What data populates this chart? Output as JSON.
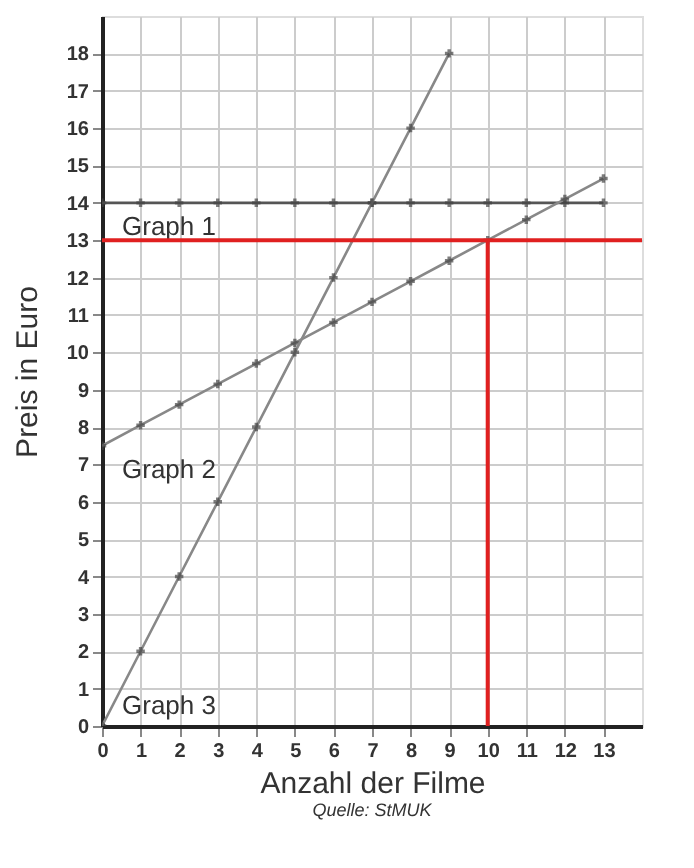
{
  "chart_data": {
    "type": "line",
    "xlabel": "Anzahl der Filme",
    "ylabel": "Preis in Euro",
    "annotations": [
      "Quelle: StMUK"
    ],
    "series": [
      {
        "name": "Graph 1",
        "color": "#555555",
        "x": [
          0,
          1,
          2,
          3,
          4,
          5,
          6,
          7,
          8,
          9,
          10,
          11,
          12,
          13
        ],
        "values": [
          14,
          14,
          14,
          14,
          14,
          14,
          14,
          14,
          14,
          14,
          14,
          14,
          14,
          14
        ]
      },
      {
        "name": "Graph 2",
        "color": "#888888",
        "x": [
          0,
          1,
          2,
          3,
          4,
          5,
          6,
          7,
          8,
          9,
          10,
          11,
          12,
          13
        ],
        "values": [
          7.5,
          8.05,
          8.6,
          9.15,
          9.7,
          10.25,
          10.8,
          11.35,
          11.9,
          12.45,
          13,
          13.55,
          14.1,
          14.65
        ]
      },
      {
        "name": "Graph 3",
        "color": "#888888",
        "x": [
          0,
          1,
          2,
          3,
          4,
          5,
          6,
          7,
          8,
          9
        ],
        "values": [
          0,
          2,
          4,
          6,
          8,
          10,
          12,
          14,
          16,
          18
        ]
      }
    ],
    "ref_lines": [
      {
        "axis": "y",
        "value": 13,
        "color": "#e02020"
      },
      {
        "axis": "x",
        "value": 10,
        "color": "#e02020"
      }
    ],
    "xlim": [
      0,
      14
    ],
    "xticks": [
      0,
      1,
      2,
      3,
      4,
      5,
      6,
      7,
      8,
      9,
      10,
      11,
      12,
      13
    ],
    "ylim": [
      0,
      19
    ],
    "yticks": [
      0,
      1,
      2,
      3,
      4,
      5,
      6,
      7,
      8,
      9,
      10,
      11,
      12,
      13,
      14,
      15,
      16,
      17,
      18
    ],
    "grid": true,
    "marker": "cross",
    "line_style": "solid",
    "legend": "left"
  }
}
